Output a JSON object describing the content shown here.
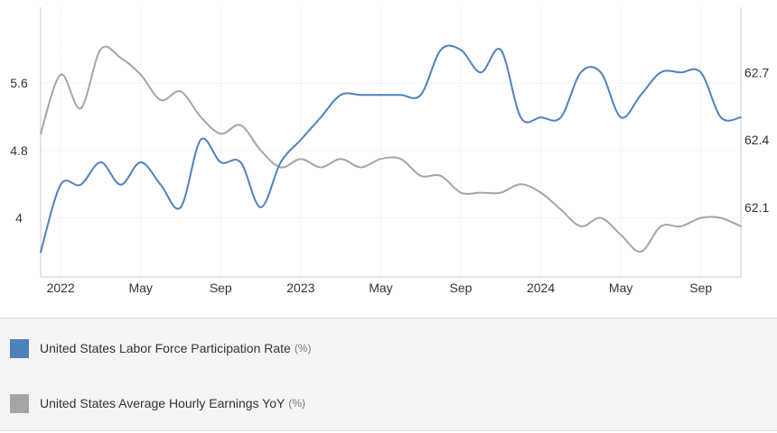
{
  "chart_data": {
    "type": "line",
    "x_labels": [
      "2022",
      "May",
      "Sep",
      "2023",
      "May",
      "Sep",
      "2024",
      "May",
      "Sep"
    ],
    "x_range": [
      "2021-12",
      "2024-11"
    ],
    "left_axis": {
      "ticks": [
        "4",
        "4.8",
        "5.6"
      ],
      "range": [
        3.3,
        6.5
      ]
    },
    "right_axis": {
      "ticks": [
        "62.1",
        "62.4",
        "62.7"
      ],
      "range": [
        61.79,
        62.99
      ]
    },
    "grid": "vertical dotted lines at x labels, horizontal dotted lines at left ticks",
    "legend_position": "bottom",
    "series": [
      {
        "name": "United States Labor Force Participation Rate",
        "unit": "(%)",
        "color": "#4f81bd",
        "axis": "right",
        "x": [
          "2021-12",
          "2022-01",
          "2022-02",
          "2022-03",
          "2022-04",
          "2022-05",
          "2022-06",
          "2022-07",
          "2022-08",
          "2022-09",
          "2022-10",
          "2022-11",
          "2022-12",
          "2023-01",
          "2023-02",
          "2023-03",
          "2023-04",
          "2023-05",
          "2023-06",
          "2023-07",
          "2023-08",
          "2023-09",
          "2023-10",
          "2023-11",
          "2023-12",
          "2024-01",
          "2024-02",
          "2024-03",
          "2024-04",
          "2024-05",
          "2024-06",
          "2024-07",
          "2024-08",
          "2024-09",
          "2024-10",
          "2024-11"
        ],
        "y": [
          61.9,
          62.2,
          62.2,
          62.3,
          62.2,
          62.3,
          62.2,
          62.1,
          62.4,
          62.3,
          62.3,
          62.1,
          62.3,
          62.4,
          62.5,
          62.6,
          62.6,
          62.6,
          62.6,
          62.6,
          62.8,
          62.8,
          62.7,
          62.8,
          62.5,
          62.5,
          62.5,
          62.7,
          62.7,
          62.5,
          62.6,
          62.7,
          62.7,
          62.7,
          62.5,
          62.5
        ]
      },
      {
        "name": "United States Average Hourly Earnings YoY",
        "unit": "(%)",
        "color": "#a5a5a5",
        "axis": "left",
        "x": [
          "2021-12",
          "2022-01",
          "2022-02",
          "2022-03",
          "2022-04",
          "2022-05",
          "2022-06",
          "2022-07",
          "2022-08",
          "2022-09",
          "2022-10",
          "2022-11",
          "2022-12",
          "2023-01",
          "2023-02",
          "2023-03",
          "2023-04",
          "2023-05",
          "2023-06",
          "2023-07",
          "2023-08",
          "2023-09",
          "2023-10",
          "2023-11",
          "2023-12",
          "2024-01",
          "2024-02",
          "2024-03",
          "2024-04",
          "2024-05",
          "2024-06",
          "2024-07",
          "2024-08",
          "2024-09",
          "2024-10",
          "2024-11"
        ],
        "y": [
          5.0,
          5.7,
          5.3,
          6.0,
          5.9,
          5.7,
          5.4,
          5.5,
          5.2,
          5.0,
          5.1,
          4.8,
          4.6,
          4.7,
          4.6,
          4.7,
          4.6,
          4.7,
          4.7,
          4.5,
          4.5,
          4.3,
          4.3,
          4.3,
          4.4,
          4.3,
          4.1,
          3.9,
          4.0,
          3.8,
          3.6,
          3.9,
          3.9,
          4.0,
          4.0,
          3.9
        ]
      }
    ]
  },
  "legend": {
    "items": [
      {
        "label": "United States Labor Force Participation Rate",
        "unit": "(%)",
        "color": "#4f81bd"
      },
      {
        "label": "United States Average Hourly Earnings YoY",
        "unit": "(%)",
        "color": "#a5a5a5"
      }
    ]
  }
}
